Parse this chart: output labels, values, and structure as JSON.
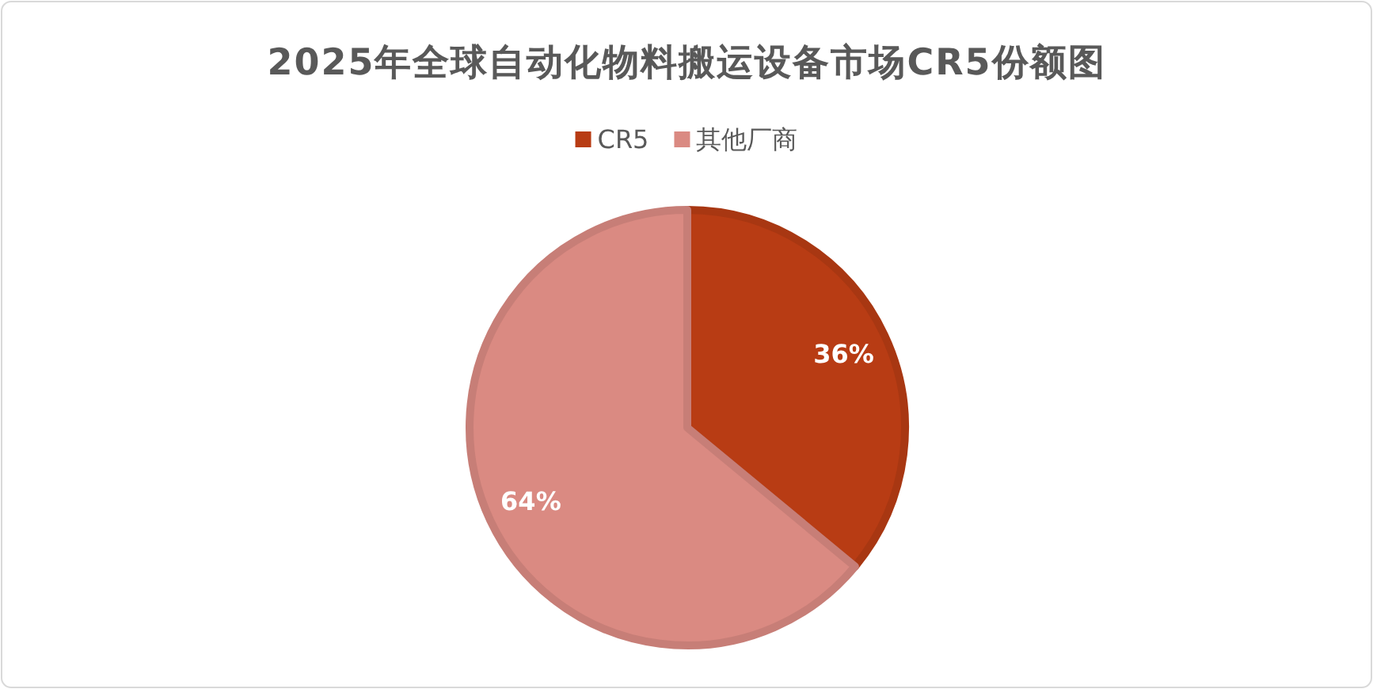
{
  "chart_data": {
    "type": "pie",
    "title": "2025年全球自动化物料搬运设备市场CR5份额图",
    "categories": [
      "CR5",
      "其他厂商"
    ],
    "values": [
      36,
      64
    ],
    "colors": [
      "#b83c14",
      "#da8a82"
    ],
    "value_labels": [
      "36%",
      "64%"
    ],
    "legend": "top"
  }
}
